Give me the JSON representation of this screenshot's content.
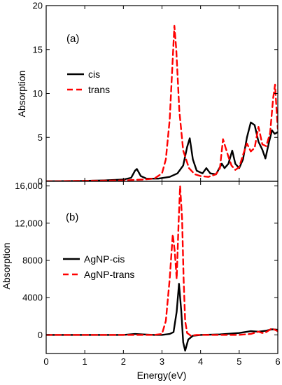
{
  "chart_data": [
    {
      "type": "line",
      "panel_label": "(a)",
      "xlabel": "",
      "ylabel": "Absorption",
      "xlim": [
        0,
        6
      ],
      "ylim": [
        0,
        20
      ],
      "x_ticks": [
        0,
        1,
        2,
        3,
        4,
        5,
        6
      ],
      "y_ticks": [
        0,
        5,
        10,
        15,
        20
      ],
      "y_tick_labels": [
        "0",
        "5",
        "10",
        "15",
        "20"
      ],
      "legend_position": "upper-left",
      "series": [
        {
          "name": "cis",
          "color": "#000000",
          "style": "solid",
          "points": [
            [
              0,
              0.0
            ],
            [
              0.5,
              0.02
            ],
            [
              1.0,
              0.05
            ],
            [
              1.5,
              0.1
            ],
            [
              2.0,
              0.2
            ],
            [
              2.2,
              0.4
            ],
            [
              2.3,
              1.2
            ],
            [
              2.35,
              1.4
            ],
            [
              2.45,
              0.6
            ],
            [
              2.6,
              0.3
            ],
            [
              2.9,
              0.3
            ],
            [
              3.2,
              0.5
            ],
            [
              3.4,
              0.9
            ],
            [
              3.55,
              1.8
            ],
            [
              3.65,
              3.9
            ],
            [
              3.72,
              4.9
            ],
            [
              3.8,
              2.5
            ],
            [
              3.9,
              1.2
            ],
            [
              4.05,
              0.9
            ],
            [
              4.15,
              1.5
            ],
            [
              4.25,
              0.9
            ],
            [
              4.4,
              0.8
            ],
            [
              4.55,
              2.0
            ],
            [
              4.62,
              1.5
            ],
            [
              4.72,
              2.0
            ],
            [
              4.82,
              3.5
            ],
            [
              4.9,
              2.0
            ],
            [
              5.0,
              1.5
            ],
            [
              5.1,
              2.5
            ],
            [
              5.2,
              5.0
            ],
            [
              5.3,
              6.7
            ],
            [
              5.4,
              6.4
            ],
            [
              5.5,
              4.5
            ],
            [
              5.6,
              3.6
            ],
            [
              5.68,
              2.6
            ],
            [
              5.78,
              4.6
            ],
            [
              5.85,
              5.8
            ],
            [
              5.92,
              5.4
            ],
            [
              6.0,
              5.6
            ]
          ]
        },
        {
          "name": "trans",
          "color": "#ff0000",
          "style": "dashed",
          "points": [
            [
              0,
              0.0
            ],
            [
              0.5,
              0.03
            ],
            [
              1.0,
              0.06
            ],
            [
              1.5,
              0.08
            ],
            [
              2.0,
              0.1
            ],
            [
              2.5,
              0.2
            ],
            [
              2.8,
              0.3
            ],
            [
              3.0,
              0.9
            ],
            [
              3.1,
              2.5
            ],
            [
              3.2,
              7.0
            ],
            [
              3.28,
              14.0
            ],
            [
              3.32,
              17.7
            ],
            [
              3.37,
              15.0
            ],
            [
              3.45,
              8.0
            ],
            [
              3.55,
              3.5
            ],
            [
              3.7,
              1.5
            ],
            [
              3.85,
              0.8
            ],
            [
              4.0,
              0.6
            ],
            [
              4.2,
              0.5
            ],
            [
              4.4,
              0.8
            ],
            [
              4.5,
              1.5
            ],
            [
              4.58,
              4.8
            ],
            [
              4.65,
              3.8
            ],
            [
              4.72,
              2.8
            ],
            [
              4.8,
              1.8
            ],
            [
              4.9,
              1.3
            ],
            [
              5.0,
              1.6
            ],
            [
              5.1,
              3.0
            ],
            [
              5.2,
              4.3
            ],
            [
              5.3,
              3.4
            ],
            [
              5.4,
              3.8
            ],
            [
              5.5,
              6.2
            ],
            [
              5.6,
              4.2
            ],
            [
              5.7,
              4.0
            ],
            [
              5.8,
              5.5
            ],
            [
              5.88,
              9.5
            ],
            [
              5.93,
              11.0
            ],
            [
              5.97,
              8.0
            ],
            [
              6.0,
              6.0
            ]
          ]
        }
      ]
    },
    {
      "type": "line",
      "panel_label": "(b)",
      "xlabel": "Energy(eV)",
      "ylabel": "Absorption",
      "xlim": [
        0,
        6
      ],
      "ylim": [
        -2000,
        16500
      ],
      "x_ticks": [
        0,
        1,
        2,
        3,
        4,
        5,
        6
      ],
      "x_tick_labels": [
        "0",
        "1",
        "2",
        "3",
        "4",
        "5",
        "6"
      ],
      "y_ticks": [
        0,
        4000,
        8000,
        12000,
        16000
      ],
      "y_tick_labels": [
        "0",
        "4000",
        "8000",
        "12,000",
        "16,000"
      ],
      "legend_position": "middle-left",
      "series": [
        {
          "name": "AgNP-cis",
          "color": "#000000",
          "style": "solid",
          "points": [
            [
              0,
              0
            ],
            [
              0.5,
              0
            ],
            [
              1.0,
              0
            ],
            [
              1.5,
              0
            ],
            [
              2.0,
              0
            ],
            [
              2.3,
              100
            ],
            [
              2.5,
              50
            ],
            [
              2.8,
              0
            ],
            [
              3.0,
              0
            ],
            [
              3.2,
              100
            ],
            [
              3.3,
              300
            ],
            [
              3.38,
              2500
            ],
            [
              3.44,
              5500
            ],
            [
              3.5,
              2500
            ],
            [
              3.55,
              -800
            ],
            [
              3.6,
              -1700
            ],
            [
              3.68,
              -500
            ],
            [
              3.8,
              -100
            ],
            [
              4.0,
              0
            ],
            [
              4.5,
              50
            ],
            [
              5.0,
              200
            ],
            [
              5.3,
              400
            ],
            [
              5.5,
              350
            ],
            [
              5.7,
              450
            ],
            [
              5.85,
              600
            ],
            [
              6.0,
              550
            ]
          ]
        },
        {
          "name": "AgNP-trans",
          "color": "#ff0000",
          "style": "dashed",
          "points": [
            [
              0,
              0
            ],
            [
              0.5,
              0
            ],
            [
              1.0,
              0
            ],
            [
              1.5,
              0
            ],
            [
              2.0,
              0
            ],
            [
              2.5,
              0
            ],
            [
              2.8,
              0
            ],
            [
              3.0,
              100
            ],
            [
              3.1,
              1500
            ],
            [
              3.2,
              6000
            ],
            [
              3.28,
              10800
            ],
            [
              3.33,
              9000
            ],
            [
              3.38,
              6000
            ],
            [
              3.43,
              12000
            ],
            [
              3.47,
              16000
            ],
            [
              3.52,
              12500
            ],
            [
              3.56,
              6000
            ],
            [
              3.6,
              1500
            ],
            [
              3.65,
              200
            ],
            [
              3.75,
              -100
            ],
            [
              3.9,
              0
            ],
            [
              4.2,
              0
            ],
            [
              4.5,
              0
            ],
            [
              5.0,
              0
            ],
            [
              5.3,
              100
            ],
            [
              5.5,
              350
            ],
            [
              5.6,
              200
            ],
            [
              5.7,
              300
            ],
            [
              5.85,
              700
            ],
            [
              5.95,
              500
            ],
            [
              6.0,
              400
            ]
          ]
        }
      ]
    }
  ]
}
